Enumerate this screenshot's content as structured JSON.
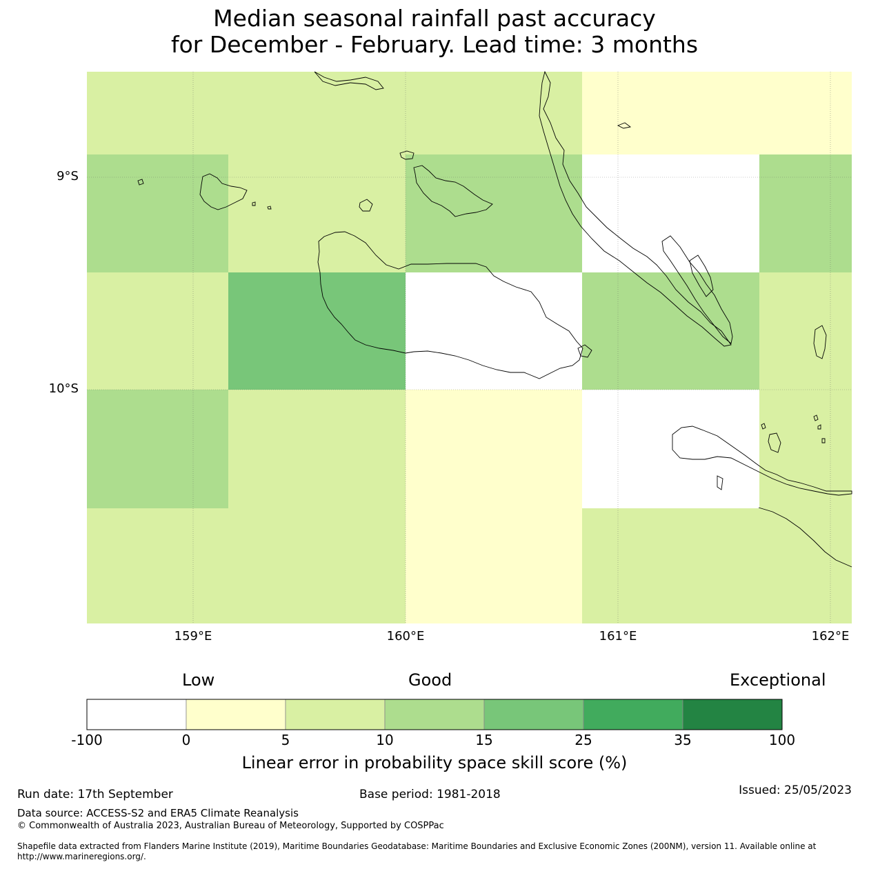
{
  "title": {
    "line1": "Median seasonal rainfall past accuracy",
    "line2": "for December - February. Lead time: 3 months"
  },
  "map": {
    "lat_labels": [
      "9°S",
      "10°S"
    ],
    "lon_labels": [
      "159°E",
      "160°E",
      "161°E",
      "162°E"
    ],
    "cell_colors_legend_index": [
      [
        2,
        2,
        2,
        1,
        1
      ],
      [
        3,
        2,
        3,
        0,
        3
      ],
      [
        2,
        4,
        0,
        3,
        2
      ],
      [
        3,
        2,
        1,
        0,
        2
      ],
      [
        2,
        2,
        1,
        2,
        2
      ]
    ]
  },
  "colorbar": {
    "categories": [
      "Low",
      "Good",
      "Exceptional"
    ],
    "ticks": [
      "-100",
      "0",
      "5",
      "10",
      "15",
      "25",
      "35",
      "100"
    ],
    "colors": [
      "#ffffff",
      "#ffffcc",
      "#d9f0a3",
      "#addd8e",
      "#78c679",
      "#41ab5d",
      "#238443"
    ],
    "label": "Linear error in probability space skill score (%)"
  },
  "footer": {
    "run_date": "Run date: 17th September",
    "base_period": "Base period: 1981-2018",
    "issued": "Issued: 25/05/2023",
    "data_source": "Data source: ACCESS-S2 and ERA5 Climate Reanalysis",
    "copyright": "© Commonwealth of Australia 2023, Australian Bureau of Meteorology, Supported by COSPPac",
    "shapefile": "Shapefile data extracted from Flanders Marine Institute (2019), Maritime Boundaries Geodatabase: Maritime Boundaries and Exclusive Economic Zones (200NM), version 11. Available online at http://www.marineregions.org/."
  }
}
